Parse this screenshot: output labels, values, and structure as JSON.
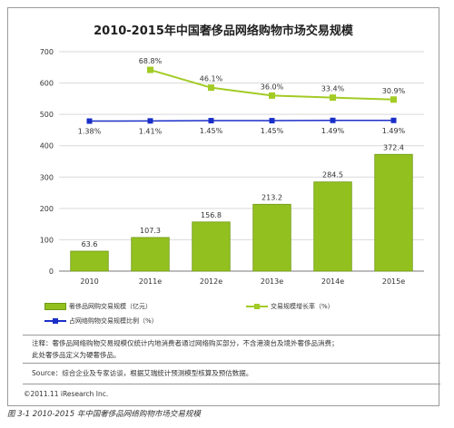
{
  "chart_data": {
    "type": "bar",
    "title": "2010-2015年中国奢侈品网络购物市场交易规模",
    "categories": [
      "2010",
      "2011e",
      "2012e",
      "2013e",
      "2014e",
      "2015e"
    ],
    "ylim": [
      0,
      700
    ],
    "yticks": [
      "0",
      "100",
      "200",
      "300",
      "400",
      "500",
      "600",
      "700"
    ],
    "grid": true,
    "legend_position": "bottom",
    "series": [
      {
        "name": "奢侈品网购交易规模（亿元）",
        "kind": "bar",
        "values": [
          63.6,
          107.3,
          156.8,
          213.2,
          284.5,
          372.4
        ],
        "labels": [
          "63.6",
          "107.3",
          "156.8",
          "213.2",
          "284.5",
          "372.4"
        ],
        "color": "#92c11f"
      },
      {
        "name": "交易规模增长率（%）",
        "kind": "line",
        "values": [
          null,
          68.8,
          46.1,
          36.0,
          33.4,
          30.9
        ],
        "labels": [
          "",
          "68.8%",
          "46.1%",
          "36.0%",
          "33.4%",
          "30.9%"
        ],
        "color": "#a2cb25"
      },
      {
        "name": "占网络购物交易规模比例（%）",
        "kind": "line",
        "values": [
          1.38,
          1.41,
          1.45,
          1.45,
          1.49,
          1.49
        ],
        "labels": [
          "1.38%",
          "1.41%",
          "1.45%",
          "1.45%",
          "1.49%",
          "1.49%"
        ],
        "color": "#1a2fc8"
      }
    ]
  },
  "notes": {
    "note_line1": "注释：奢侈品网络购物交易规模仅统计内地消费者通过网络购买部分，不含港澳台及境外奢侈品消费；",
    "note_line2": "此处奢侈品定义为硬奢侈品。",
    "source": "Source：综合企业及专家访谈，根据艾瑞统计预测模型核算及预估数据。",
    "copyright": "©2011.11 iResearch Inc.",
    "caption": "图 3-1 2010-2015 年中国奢侈品网络购物市场交易规模"
  }
}
